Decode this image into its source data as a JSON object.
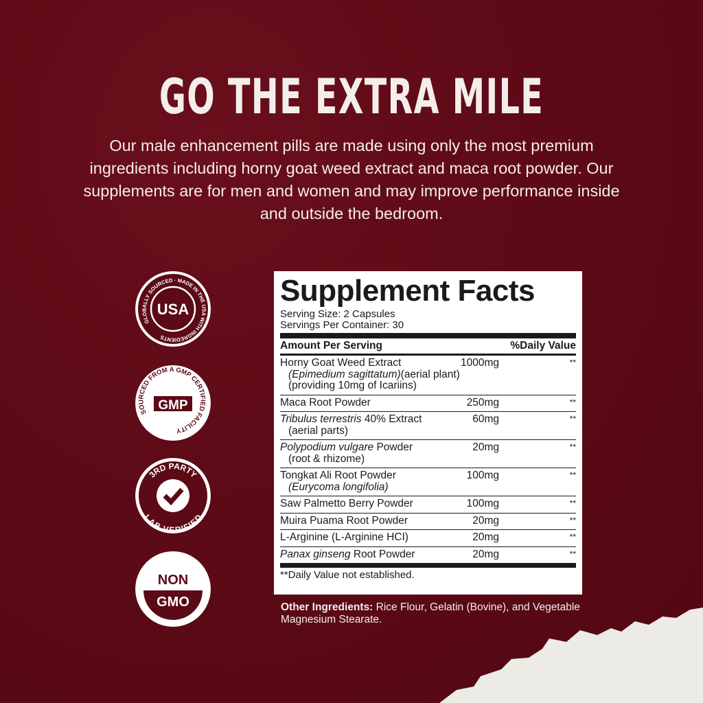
{
  "title": "GO THE EXTRA MILE",
  "description": "Our male enhancement pills are made using only the most premium ingredients including horny goat weed extract and maca root powder. Our supplements are for men and women and may improve performance inside and outside the bedroom.",
  "colors": {
    "background": "#5c0a16",
    "text": "#f4eeea",
    "label_bg": "#ffffff",
    "label_ink": "#1a1a1a"
  },
  "badges": [
    {
      "icon": "made-in-usa-badge",
      "text": "GLOBALLY SOURCED · MADE IN THE USA WITH INGREDIENTS"
    },
    {
      "icon": "gmp-badge",
      "text": "SOURCED FROM A GMP CERTIFIED FACILITY"
    },
    {
      "icon": "lab-verified-badge",
      "text": "3RD PARTY LAB VERIFIED"
    },
    {
      "icon": "non-gmo-badge",
      "text": "NON GMO"
    }
  ],
  "facts": {
    "title": "Supplement Facts",
    "serving_size": "Serving Size: 2 Capsules",
    "servings_per_container": "Servings Per Container: 30",
    "col_amount": "Amount Per Serving",
    "col_dv": "%Daily Value",
    "rows": [
      {
        "lines": [
          [
            {
              "t": "Horny Goat Weed Extract"
            }
          ],
          [
            {
              "t": "(Epimedium sagittatum)",
              "i": true
            },
            {
              "t": "(aerial plant)"
            }
          ],
          [
            {
              "t": "(providing 10mg of Icariins)"
            }
          ]
        ],
        "amount": "1000mg",
        "dv": "**"
      },
      {
        "lines": [
          [
            {
              "t": "Maca Root Powder"
            }
          ]
        ],
        "amount": "250mg",
        "dv": "**"
      },
      {
        "lines": [
          [
            {
              "t": "Tribulus terrestris",
              "i": true
            },
            {
              "t": " 40% Extract"
            }
          ],
          [
            {
              "t": "(aerial parts)"
            }
          ]
        ],
        "amount": "60mg",
        "dv": "**"
      },
      {
        "lines": [
          [
            {
              "t": "Polypodium vulgare",
              "i": true
            },
            {
              "t": " Powder"
            }
          ],
          [
            {
              "t": "(root & rhizome)"
            }
          ]
        ],
        "amount": "20mg",
        "dv": "**"
      },
      {
        "lines": [
          [
            {
              "t": "Tongkat Ali Root Powder"
            }
          ],
          [
            {
              "t": "(Eurycoma longifolia)",
              "i": true
            }
          ]
        ],
        "amount": "100mg",
        "dv": "**"
      },
      {
        "lines": [
          [
            {
              "t": "Saw Palmetto Berry Powder"
            }
          ]
        ],
        "amount": "100mg",
        "dv": "**"
      },
      {
        "lines": [
          [
            {
              "t": "Muira Puama Root Powder"
            }
          ]
        ],
        "amount": "20mg",
        "dv": "**"
      },
      {
        "lines": [
          [
            {
              "t": "L-Arginine (L-Arginine HCI)"
            }
          ]
        ],
        "amount": "20mg",
        "dv": "**"
      },
      {
        "lines": [
          [
            {
              "t": "Panax ginseng",
              "i": true
            },
            {
              "t": " Root Powder"
            }
          ]
        ],
        "amount": "20mg",
        "dv": "**"
      }
    ],
    "footnote": "**Daily Value not established."
  },
  "other": {
    "label": "Other Ingredients:",
    "text": " Rice Flour, Gelatin (Bovine), and Vegetable Magnesium Stearate."
  }
}
